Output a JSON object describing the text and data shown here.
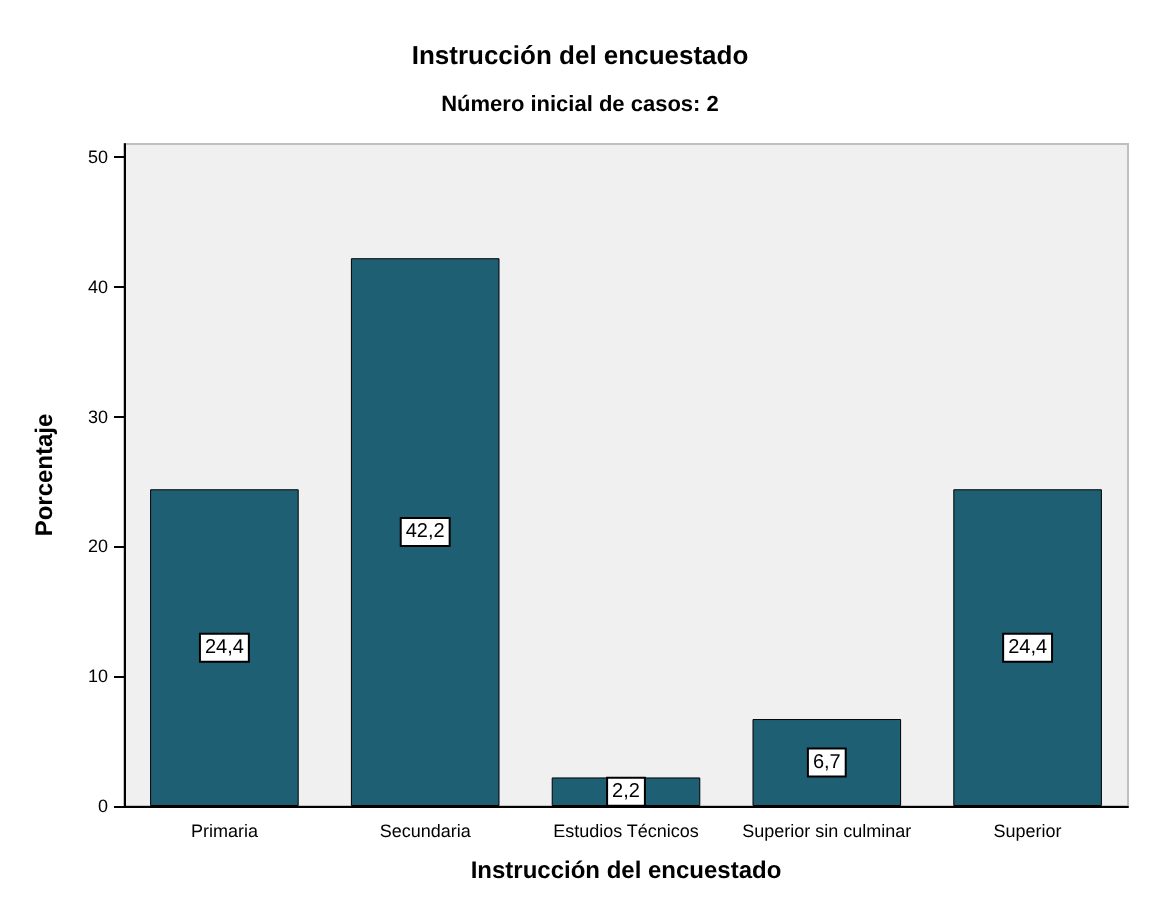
{
  "chart_data": {
    "type": "bar",
    "title": "Instrucción del encuestado",
    "subtitle": "Número inicial de casos: 2",
    "xlabel": "Instrucción del encuestado",
    "ylabel": "Porcentaje",
    "categories": [
      "Primaria",
      "Secundaria",
      "Estudios Técnicos",
      "Superior sin culminar",
      "Superior"
    ],
    "values": [
      24.4,
      42.2,
      2.2,
      6.7,
      24.4
    ],
    "value_labels": [
      "24,4",
      "42,2",
      "2,2",
      "6,7",
      "24,4"
    ],
    "color": "#1f5f74",
    "ylim": [
      0,
      51
    ],
    "yticks": [
      0,
      10,
      20,
      30,
      40,
      50
    ],
    "grid": false
  }
}
